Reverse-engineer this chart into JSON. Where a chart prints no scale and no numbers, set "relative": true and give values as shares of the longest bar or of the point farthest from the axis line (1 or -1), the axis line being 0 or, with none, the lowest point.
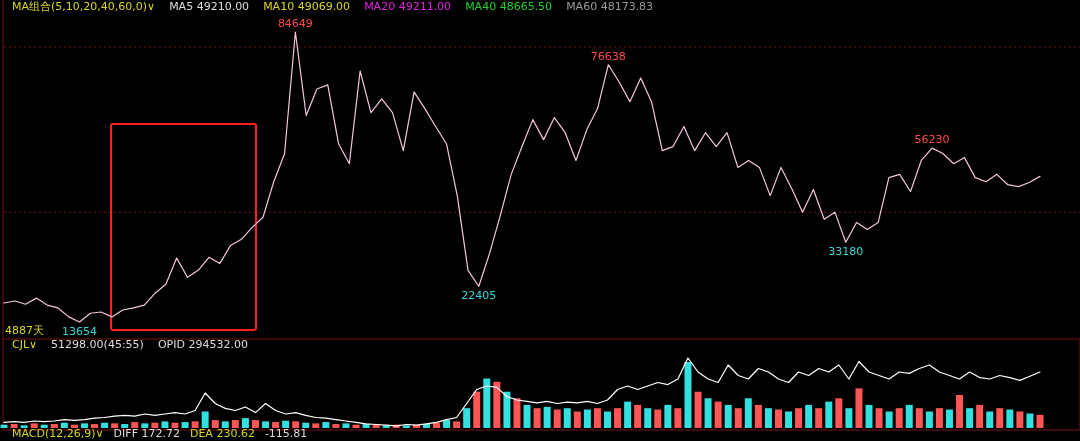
{
  "chart_data": [
    {
      "type": "line",
      "categories": [
        null,
        null,
        null,
        null,
        null,
        null,
        null,
        null,
        null,
        null,
        null,
        null,
        null,
        null,
        null,
        null,
        null,
        null,
        null,
        null,
        null,
        null,
        null,
        null,
        null,
        null,
        null,
        null,
        null,
        null,
        null,
        null,
        null,
        null,
        null,
        null,
        null,
        null,
        null,
        null,
        null,
        null,
        null,
        null,
        null,
        null,
        null,
        null,
        null,
        null,
        null,
        null,
        null,
        null,
        null,
        null,
        null,
        null,
        null,
        null,
        null,
        null,
        null,
        null,
        null,
        null,
        null,
        null,
        null,
        null,
        null,
        null,
        null,
        null,
        null,
        null,
        null,
        null,
        null,
        null,
        null,
        null,
        null,
        null,
        null,
        null,
        null,
        null,
        null,
        null,
        null,
        null,
        null,
        null,
        null,
        null,
        null
      ],
      "series": [
        {
          "color": "#f4c6de",
          "values": [
            18300,
            18800,
            18000,
            19500,
            17800,
            17100,
            14900,
            13654,
            15800,
            16100,
            14900,
            16600,
            17100,
            17800,
            20700,
            22900,
            29300,
            24600,
            26300,
            29500,
            28000,
            32400,
            33900,
            36800,
            39300,
            48000,
            54900,
            84649,
            64200,
            70700,
            71700,
            57300,
            52400,
            75100,
            64900,
            68300,
            64900,
            55600,
            70000,
            65900,
            61500,
            57300,
            44600,
            26300,
            22405,
            30500,
            39800,
            49800,
            56600,
            63200,
            58300,
            63700,
            60000,
            53200,
            60700,
            65900,
            76638,
            72400,
            67600,
            73400,
            67600,
            55600,
            56600,
            61500,
            55600,
            60000,
            56600,
            60000,
            51500,
            53200,
            51500,
            44600,
            51500,
            46300,
            40500,
            46100,
            38800,
            40500,
            33180,
            38000,
            36300,
            38000,
            49000,
            49800,
            45600,
            53200,
            56230,
            54900,
            52400,
            53900,
            49000,
            48000,
            49800,
            47300,
            46800,
            47800,
            49300
          ],
          "value_labels": [
            null,
            null,
            null,
            null,
            null,
            null,
            null,
            "13654",
            null,
            null,
            null,
            null,
            null,
            null,
            null,
            null,
            null,
            null,
            null,
            null,
            null,
            null,
            null,
            null,
            null,
            null,
            null,
            "84649",
            null,
            null,
            null,
            null,
            null,
            null,
            null,
            null,
            null,
            null,
            null,
            null,
            null,
            null,
            null,
            null,
            "22405",
            null,
            null,
            null,
            null,
            null,
            null,
            null,
            null,
            null,
            null,
            null,
            "76638",
            null,
            null,
            null,
            null,
            null,
            null,
            null,
            null,
            null,
            null,
            null,
            null,
            null,
            null,
            null,
            null,
            null,
            null,
            null,
            null,
            null,
            "33180",
            null,
            null,
            null,
            null,
            null,
            null,
            null,
            "56230",
            null,
            null,
            null,
            null,
            null,
            null,
            null,
            null,
            null,
            null
          ]
        }
      ],
      "ref_lines": [
        {
          "axis": "y",
          "value": 40500,
          "color": "#7a1010",
          "line_style": "dashed"
        },
        {
          "axis": "y",
          "value": 81000,
          "color": "#7a1010",
          "line_style": "dashed"
        }
      ],
      "annotations": [
        "MA组合(5,10,20,40,60,0)∨",
        "MA5 49210.00",
        "MA10 49069.00",
        "MA20 49211.00",
        "MA40 48665.50",
        "MA60 48173.83",
        "4887天"
      ]
    },
    {
      "type": "bar",
      "relative": true,
      "categories": [
        null,
        null,
        null,
        null,
        null,
        null,
        null,
        null,
        null,
        null,
        null,
        null,
        null,
        null,
        null,
        null,
        null,
        null,
        null,
        null,
        null,
        null,
        null,
        null,
        null,
        null,
        null,
        null,
        null,
        null,
        null,
        null,
        null,
        null,
        null,
        null,
        null,
        null,
        null,
        null,
        null,
        null,
        null,
        null,
        null,
        null,
        null,
        null,
        null,
        null,
        null,
        null,
        null,
        null,
        null,
        null,
        null,
        null,
        null,
        null,
        null,
        null,
        null,
        null,
        null,
        null,
        null,
        null,
        null,
        null,
        null,
        null,
        null,
        null,
        null,
        null,
        null,
        null,
        null,
        null,
        null,
        null,
        null,
        null,
        null,
        null,
        null,
        null,
        null,
        null,
        null,
        null,
        null,
        null,
        null,
        null,
        null,
        null,
        null,
        null,
        null,
        null,
        null,
        null
      ],
      "series": [
        {
          "values": [
            0.05,
            0.06,
            0.04,
            0.07,
            0.05,
            0.06,
            0.08,
            0.05,
            0.07,
            0.06,
            0.08,
            0.07,
            0.06,
            0.09,
            0.07,
            0.08,
            0.1,
            0.08,
            0.09,
            0.1,
            0.25,
            0.12,
            0.1,
            0.12,
            0.15,
            0.12,
            0.1,
            0.09,
            0.11,
            0.1,
            0.08,
            0.07,
            0.09,
            0.06,
            0.07,
            0.05,
            0.06,
            0.05,
            0.04,
            0.05,
            0.04,
            0.05,
            0.06,
            0.08,
            0.12,
            0.1,
            0.3,
            0.55,
            0.75,
            0.7,
            0.55,
            0.45,
            0.35,
            0.3,
            0.32,
            0.28,
            0.3,
            0.25,
            0.28,
            0.3,
            0.25,
            0.3,
            0.4,
            0.35,
            0.3,
            0.28,
            0.35,
            0.3,
            1,
            0.55,
            0.45,
            0.4,
            0.35,
            0.3,
            0.45,
            0.35,
            0.3,
            0.28,
            0.25,
            0.3,
            0.35,
            0.3,
            0.4,
            0.45,
            0.3,
            0.6,
            0.35,
            0.3,
            0.25,
            0.3,
            0.35,
            0.3,
            0.25,
            0.3,
            0.28,
            0.5,
            0.3,
            0.35,
            0.25,
            0.3,
            0.28,
            0.25,
            0.22,
            0.2
          ],
          "colors": [
            "#33e0e0",
            "#ff5555",
            "#33e0e0",
            "#ff5555",
            "#33e0e0",
            "#ff5555",
            "#33e0e0",
            "#ff5555",
            "#33e0e0",
            "#ff5555",
            "#33e0e0",
            "#ff5555",
            "#33e0e0",
            "#ff5555",
            "#33e0e0",
            "#ff5555",
            "#33e0e0",
            "#ff5555",
            "#33e0e0",
            "#ff5555",
            "#33e0e0",
            "#ff5555",
            "#33e0e0",
            "#ff5555",
            "#33e0e0",
            "#ff5555",
            "#33e0e0",
            "#ff5555",
            "#33e0e0",
            "#ff5555",
            "#33e0e0",
            "#ff5555",
            "#33e0e0",
            "#ff5555",
            "#33e0e0",
            "#ff5555",
            "#33e0e0",
            "#ff5555",
            "#33e0e0",
            "#ff5555",
            "#33e0e0",
            "#ff5555",
            "#33e0e0",
            "#ff5555",
            "#33e0e0",
            "#ff5555",
            "#33e0e0",
            "#ff5555",
            "#33e0e0",
            "#ff5555",
            "#33e0e0",
            "#ff5555",
            "#33e0e0",
            "#ff5555",
            "#33e0e0",
            "#ff5555",
            "#33e0e0",
            "#ff5555",
            "#33e0e0",
            "#ff5555",
            "#33e0e0",
            "#ff5555",
            "#33e0e0",
            "#ff5555",
            "#33e0e0",
            "#ff5555",
            "#33e0e0",
            "#ff5555",
            "#33e0e0",
            "#ff5555",
            "#33e0e0",
            "#ff5555",
            "#33e0e0",
            "#ff5555",
            "#33e0e0",
            "#ff5555",
            "#33e0e0",
            "#ff5555",
            "#33e0e0",
            "#ff5555",
            "#33e0e0",
            "#ff5555",
            "#33e0e0",
            "#ff5555",
            "#33e0e0",
            "#ff5555",
            "#33e0e0",
            "#ff5555",
            "#33e0e0",
            "#ff5555",
            "#33e0e0",
            "#ff5555",
            "#33e0e0",
            "#ff5555",
            "#33e0e0",
            "#ff5555",
            "#33e0e0",
            "#ff5555",
            "#33e0e0",
            "#ff5555",
            "#33e0e0",
            "#ff5555",
            "#33e0e0",
            "#ff5555"
          ]
        }
      ],
      "annotations": [
        "CJL∨",
        "51298.00(45:55)",
        "OPID 294532.00",
        "MACD(12,26,9)∨",
        "DIFF 172.72",
        "DEA 230.62",
        "-115.81"
      ]
    },
    {
      "type": "line",
      "relative": true,
      "categories": [
        null,
        null,
        null,
        null,
        null,
        null,
        null,
        null,
        null,
        null,
        null,
        null,
        null,
        null,
        null,
        null,
        null,
        null,
        null,
        null,
        null,
        null,
        null,
        null,
        null,
        null,
        null,
        null,
        null,
        null,
        null,
        null,
        null,
        null,
        null,
        null,
        null,
        null,
        null,
        null,
        null,
        null,
        null,
        null,
        null,
        null,
        null,
        null,
        null,
        null,
        null,
        null,
        null,
        null,
        null,
        null,
        null,
        null,
        null,
        null,
        null,
        null,
        null,
        null,
        null,
        null,
        null,
        null,
        null,
        null,
        null,
        null,
        null,
        null,
        null,
        null,
        null,
        null,
        null,
        null,
        null,
        null,
        null,
        null,
        null,
        null,
        null,
        null,
        null,
        null,
        null,
        null,
        null,
        null,
        null,
        null,
        null,
        null,
        null,
        null,
        null,
        null,
        null,
        null
      ],
      "series": [
        {
          "color": "#ffffff",
          "values": [
            0.08,
            0.09,
            0.08,
            0.1,
            0.09,
            0.1,
            0.12,
            0.11,
            0.12,
            0.14,
            0.15,
            0.17,
            0.18,
            0.17,
            0.2,
            0.18,
            0.2,
            0.22,
            0.2,
            0.25,
            0.5,
            0.35,
            0.28,
            0.25,
            0.3,
            0.22,
            0.35,
            0.25,
            0.2,
            0.22,
            0.18,
            0.15,
            0.14,
            0.12,
            0.1,
            0.08,
            0.06,
            0.05,
            0.04,
            0.03,
            0.05,
            0.04,
            0.06,
            0.08,
            0.12,
            0.15,
            0.35,
            0.55,
            0.6,
            0.58,
            0.45,
            0.4,
            0.38,
            0.36,
            0.38,
            0.35,
            0.37,
            0.36,
            0.38,
            0.35,
            0.4,
            0.55,
            0.6,
            0.55,
            0.6,
            0.65,
            0.62,
            0.7,
            1,
            0.8,
            0.7,
            0.65,
            0.9,
            0.75,
            0.7,
            0.85,
            0.8,
            0.7,
            0.65,
            0.8,
            0.75,
            0.85,
            0.8,
            0.9,
            0.7,
            0.95,
            0.8,
            0.75,
            0.7,
            0.8,
            0.78,
            0.85,
            0.9,
            0.8,
            0.75,
            0.7,
            0.8,
            0.72,
            0.7,
            0.75,
            0.72,
            0.68,
            0.74,
            0.8
          ]
        }
      ]
    }
  ]
}
